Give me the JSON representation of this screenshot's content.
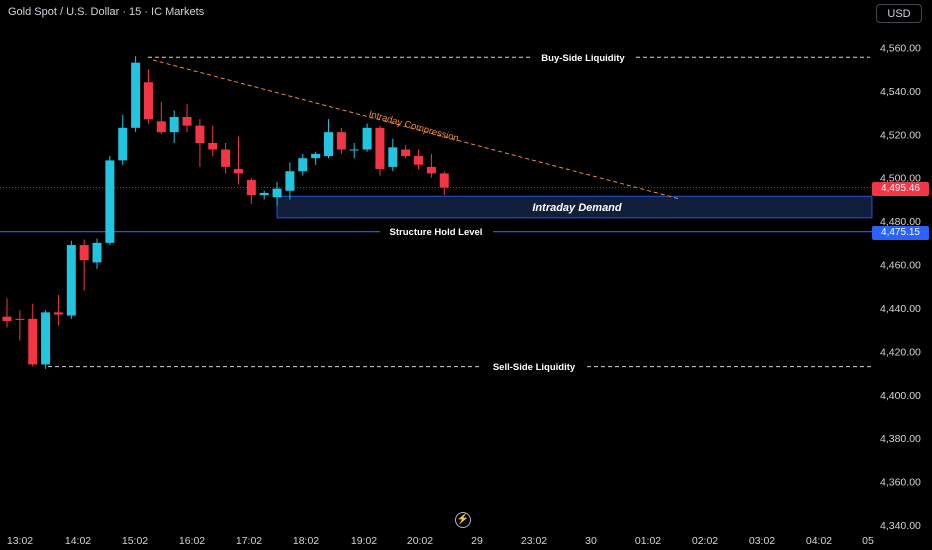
{
  "header": {
    "title": "Gold Spot / U.S. Dollar · 15 · IC Markets",
    "currency_button": "USD"
  },
  "colors": {
    "background": "#000000",
    "bull": "#22c4e0",
    "bear": "#f23645",
    "accent_blue": "#2962ff",
    "trendline": "#f0883e",
    "text": "#d1d4dc"
  },
  "price_tags": {
    "current": "4,495.46",
    "structure": "4,475.15"
  },
  "replay_icon": "replay-lightning-icon",
  "chart_data": {
    "type": "candlestick",
    "y_axis": {
      "range": [
        4335,
        4573
      ],
      "ticks": [
        4560,
        4540,
        4520,
        4500,
        4480,
        4460,
        4440,
        4420,
        4400,
        4380,
        4360,
        4340
      ],
      "tick_labels": [
        "4,560.00",
        "4,540.00",
        "4,520.00",
        "4,500.00",
        "4,480.00",
        "4,460.00",
        "4,440.00",
        "4,420.00",
        "4,400.00",
        "4,380.00",
        "4,360.00",
        "4,340.00"
      ]
    },
    "x_axis": {
      "labels": [
        "13:02",
        "14:02",
        "15:02",
        "16:02",
        "17:02",
        "18:02",
        "19:02",
        "20:02",
        "29",
        "23:02",
        "30",
        "01:02",
        "02:02",
        "03:02",
        "04:02",
        "05"
      ]
    },
    "candles": [
      {
        "o": 4436.0,
        "h": 4444.5,
        "l": 4431.0,
        "c": 4434.0
      },
      {
        "o": 4435.0,
        "h": 4439.0,
        "l": 4425.0,
        "c": 4434.5
      },
      {
        "o": 4435.0,
        "h": 4442.0,
        "l": 4413.0,
        "c": 4414.0
      },
      {
        "o": 4414.0,
        "h": 4439.0,
        "l": 4412.0,
        "c": 4438.0
      },
      {
        "o": 4438.0,
        "h": 4446.0,
        "l": 4432.0,
        "c": 4437.0
      },
      {
        "o": 4436.5,
        "h": 4471.0,
        "l": 4435.0,
        "c": 4469.0
      },
      {
        "o": 4469.0,
        "h": 4471.5,
        "l": 4448.0,
        "c": 4462.0
      },
      {
        "o": 4461.0,
        "h": 4472.0,
        "l": 4458.0,
        "c": 4470.0
      },
      {
        "o": 4470.0,
        "h": 4510.0,
        "l": 4469.0,
        "c": 4508.0
      },
      {
        "o": 4508.0,
        "h": 4529.0,
        "l": 4506.0,
        "c": 4523.0
      },
      {
        "o": 4523.0,
        "h": 4556.0,
        "l": 4521.0,
        "c": 4553.0
      },
      {
        "o": 4544.0,
        "h": 4550.0,
        "l": 4525.0,
        "c": 4527.0
      },
      {
        "o": 4526.0,
        "h": 4535.0,
        "l": 4520.0,
        "c": 4521.0
      },
      {
        "o": 4521.0,
        "h": 4531.0,
        "l": 4516.0,
        "c": 4528.0
      },
      {
        "o": 4528.0,
        "h": 4534.0,
        "l": 4521.0,
        "c": 4524.0
      },
      {
        "o": 4524.0,
        "h": 4527.0,
        "l": 4505.0,
        "c": 4516.0
      },
      {
        "o": 4516.0,
        "h": 4524.0,
        "l": 4510.0,
        "c": 4513.0
      },
      {
        "o": 4513.0,
        "h": 4516.0,
        "l": 4502.0,
        "c": 4505.0
      },
      {
        "o": 4504.0,
        "h": 4519.0,
        "l": 4497.0,
        "c": 4502.0
      },
      {
        "o": 4499.0,
        "h": 4500.0,
        "l": 4488.0,
        "c": 4492.0
      },
      {
        "o": 4492.0,
        "h": 4494.0,
        "l": 4490.0,
        "c": 4493.0
      },
      {
        "o": 4491.0,
        "h": 4498.0,
        "l": 4487.0,
        "c": 4495.0
      },
      {
        "o": 4494.0,
        "h": 4507.0,
        "l": 4490.0,
        "c": 4503.0
      },
      {
        "o": 4503.0,
        "h": 4511.0,
        "l": 4501.0,
        "c": 4509.0
      },
      {
        "o": 4509.0,
        "h": 4512.0,
        "l": 4506.0,
        "c": 4511.0
      },
      {
        "o": 4510.0,
        "h": 4527.0,
        "l": 4509.0,
        "c": 4521.0
      },
      {
        "o": 4521.0,
        "h": 4523.0,
        "l": 4511.0,
        "c": 4513.0
      },
      {
        "o": 4513.0,
        "h": 4516.0,
        "l": 4509.0,
        "c": 4513.0
      },
      {
        "o": 4513.0,
        "h": 4525.0,
        "l": 4512.0,
        "c": 4523.0
      },
      {
        "o": 4523.0,
        "h": 4524.0,
        "l": 4501.0,
        "c": 4504.0
      },
      {
        "o": 4505.0,
        "h": 4518.0,
        "l": 4503.0,
        "c": 4514.0
      },
      {
        "o": 4513.0,
        "h": 4515.0,
        "l": 4509.0,
        "c": 4510.0
      },
      {
        "o": 4510.0,
        "h": 4513.0,
        "l": 4504.0,
        "c": 4506.0
      },
      {
        "o": 4505.0,
        "h": 4511.0,
        "l": 4500.0,
        "c": 4502.0
      },
      {
        "o": 4502.0,
        "h": 4503.0,
        "l": 4492.0,
        "c": 4495.5
      }
    ],
    "annotations": {
      "buy_side": {
        "label": "Buy-Side Liquidity",
        "price": 4555.5
      },
      "sell_side": {
        "label": "Sell-Side Liquidity",
        "price": 4413.0
      },
      "structure": {
        "label": "Structure Hold Level",
        "price": 4475.15
      },
      "current_price": 4495.46,
      "demand_zone": {
        "label": "Intraday Demand",
        "top": 4491.5,
        "bottom": 4481.5
      },
      "trendline": {
        "label": "Intraday Compression"
      }
    }
  }
}
